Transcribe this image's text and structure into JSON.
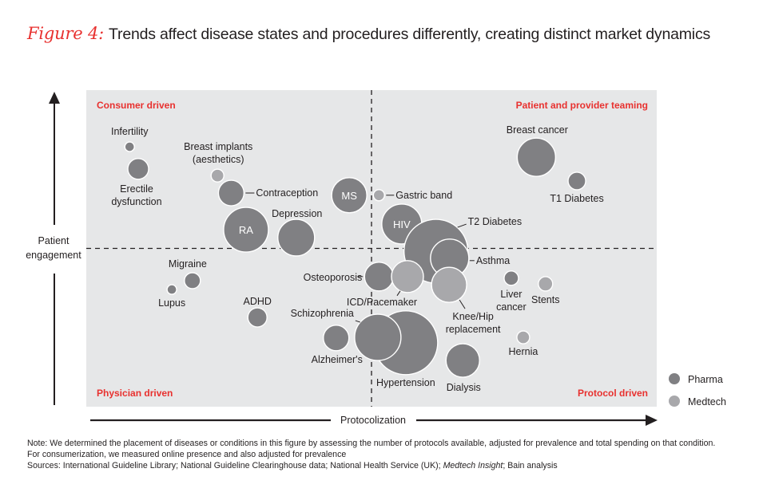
{
  "title": {
    "figure_label": "Figure 4:",
    "text": "Trends affect disease states and procedures differently, creating distinct market dynamics"
  },
  "notes": {
    "line1": "Note: We determined the placement of diseases or conditions in this figure by assessing the number of protocols available, adjusted for prevalence and total spending on that condition.",
    "line2": "For consumerization, we measured online presence and also adjusted for prevalence",
    "sources_prefix": "Sources: International Guideline Library; National Guideline Clearinghouse data; National Health Service (UK); ",
    "sources_italic": "Medtech Insight",
    "sources_suffix": "; Bain analysis"
  },
  "colors": {
    "pharma": "#808083",
    "medtech": "#a8a8ab",
    "plot_bg": "#e6e7e8",
    "quadrant_label": "#e8312f",
    "axis": "#231f20"
  },
  "chart_data": {
    "type": "scatter",
    "subtype": "bubble",
    "title": "Trends affect disease states and procedures differently, creating distinct market dynamics",
    "xlabel": "Protocolization",
    "ylabel": "Patient engagement",
    "xlim": [
      0,
      100
    ],
    "ylim": [
      0,
      100
    ],
    "x_divider": 50,
    "y_divider": 50,
    "grid": false,
    "legend_position": "bottom-right",
    "legend": [
      {
        "name": "Pharma",
        "category": "pharma"
      },
      {
        "name": "Medtech",
        "category": "medtech"
      }
    ],
    "quadrants": {
      "top_left": "Consumer driven",
      "top_right": "Patient and provider teaming",
      "bottom_left": "Physician driven",
      "bottom_right": "Protocol driven"
    },
    "points": [
      {
        "name": "Infertility",
        "x": 7.6,
        "y": 82.1,
        "size": 6,
        "category": "pharma"
      },
      {
        "name": "Erectile dysfunction",
        "x": 9.1,
        "y": 75.1,
        "size": 13,
        "category": "pharma"
      },
      {
        "name": "Breast implants (aesthetics)",
        "x": 23.0,
        "y": 73.0,
        "size": 8,
        "category": "medtech"
      },
      {
        "name": "Contraception",
        "x": 25.4,
        "y": 67.5,
        "size": 16,
        "category": "pharma"
      },
      {
        "name": "RA",
        "x": 28.0,
        "y": 55.9,
        "size": 28,
        "category": "pharma"
      },
      {
        "name": "Depression",
        "x": 36.8,
        "y": 53.4,
        "size": 23,
        "category": "pharma"
      },
      {
        "name": "MS",
        "x": 46.1,
        "y": 66.8,
        "size": 22,
        "category": "pharma"
      },
      {
        "name": "Gastric band",
        "x": 51.3,
        "y": 66.8,
        "size": 7,
        "category": "medtech"
      },
      {
        "name": "HIV",
        "x": 55.3,
        "y": 57.7,
        "size": 25,
        "category": "pharma"
      },
      {
        "name": "T2 Diabetes",
        "x": 61.3,
        "y": 49.1,
        "size": 40,
        "category": "pharma"
      },
      {
        "name": "Asthma",
        "x": 63.7,
        "y": 46.9,
        "size": 24,
        "category": "pharma"
      },
      {
        "name": "Osteoporosis",
        "x": 51.3,
        "y": 41.1,
        "size": 18,
        "category": "pharma"
      },
      {
        "name": "ICD/Pacemaker",
        "x": 56.3,
        "y": 41.1,
        "size": 20,
        "category": "medtech"
      },
      {
        "name": "Knee/Hip replacement",
        "x": 63.6,
        "y": 38.5,
        "size": 22,
        "category": "medtech"
      },
      {
        "name": "Migraine",
        "x": 18.6,
        "y": 39.8,
        "size": 10,
        "category": "pharma"
      },
      {
        "name": "Lupus",
        "x": 15.0,
        "y": 37.0,
        "size": 6,
        "category": "pharma"
      },
      {
        "name": "ADHD",
        "x": 30.0,
        "y": 28.2,
        "size": 12,
        "category": "pharma"
      },
      {
        "name": "Hypertension",
        "x": 56.0,
        "y": 20.2,
        "size": 40,
        "category": "pharma"
      },
      {
        "name": "Schizophrenia",
        "x": 51.1,
        "y": 21.9,
        "size": 29,
        "category": "pharma"
      },
      {
        "name": "Alzheimer's",
        "x": 43.8,
        "y": 21.7,
        "size": 16,
        "category": "pharma"
      },
      {
        "name": "Dialysis",
        "x": 66.0,
        "y": 14.6,
        "size": 21,
        "category": "pharma"
      },
      {
        "name": "Liver cancer",
        "x": 74.5,
        "y": 40.6,
        "size": 9,
        "category": "pharma"
      },
      {
        "name": "Stents",
        "x": 80.5,
        "y": 38.8,
        "size": 9,
        "category": "medtech"
      },
      {
        "name": "Hernia",
        "x": 76.6,
        "y": 21.9,
        "size": 8,
        "category": "medtech"
      },
      {
        "name": "Breast cancer",
        "x": 78.9,
        "y": 78.8,
        "size": 24,
        "category": "pharma"
      },
      {
        "name": "T1 Diabetes",
        "x": 86.0,
        "y": 71.3,
        "size": 11,
        "category": "pharma"
      }
    ]
  }
}
